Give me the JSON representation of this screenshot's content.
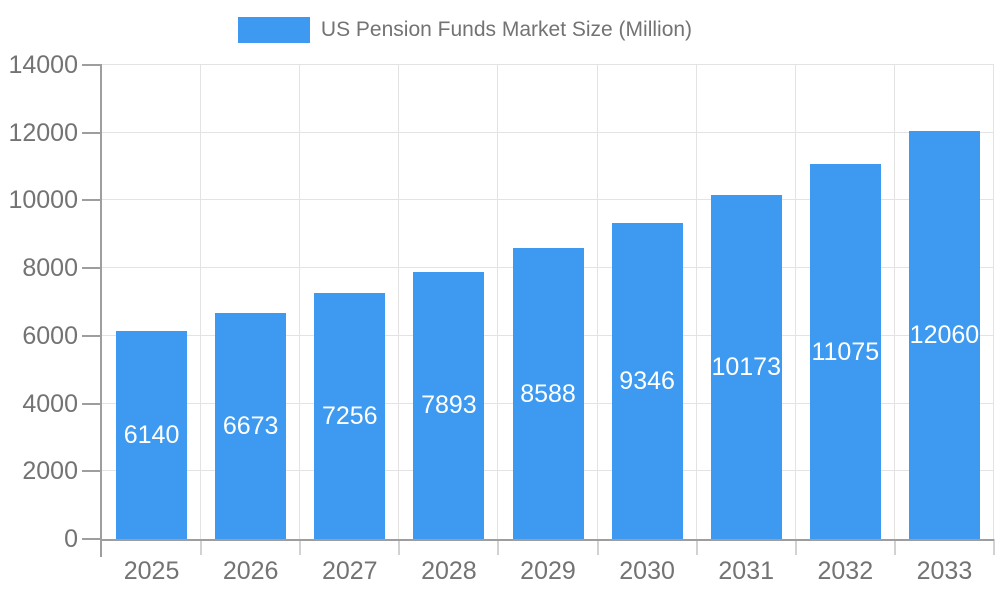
{
  "chart_data": {
    "type": "bar",
    "title": "US Pension Funds Market Size (Million)",
    "legend": {
      "label": "US Pension Funds Market Size (Million)",
      "position": "top-center"
    },
    "categories": [
      "2025",
      "2026",
      "2027",
      "2028",
      "2029",
      "2030",
      "2031",
      "2032",
      "2033"
    ],
    "series": [
      {
        "name": "US Pension Funds Market Size (Million)",
        "values": [
          6140,
          6673,
          7256,
          7893,
          8588,
          9346,
          10173,
          11075,
          12060
        ],
        "color": "#3D9AF0"
      }
    ],
    "xlabel": "",
    "ylabel": "",
    "ylim": [
      0,
      14000
    ],
    "yticks": [
      0,
      2000,
      4000,
      6000,
      8000,
      10000,
      12000,
      14000
    ],
    "grid": {
      "horizontal": true,
      "vertical": true
    },
    "value_labels": {
      "position": "inside-center",
      "color": "#FFFFFF"
    }
  },
  "colors": {
    "background": "#FFFFFF",
    "bar": "#3D9AF0",
    "axis_line": "#9E9E9E",
    "gridline": "#E3E3E3",
    "x_tick": "#D2D2D2",
    "axis_text": "#737373",
    "legend_text": "#737373",
    "value_label": "#FFFFFF"
  }
}
